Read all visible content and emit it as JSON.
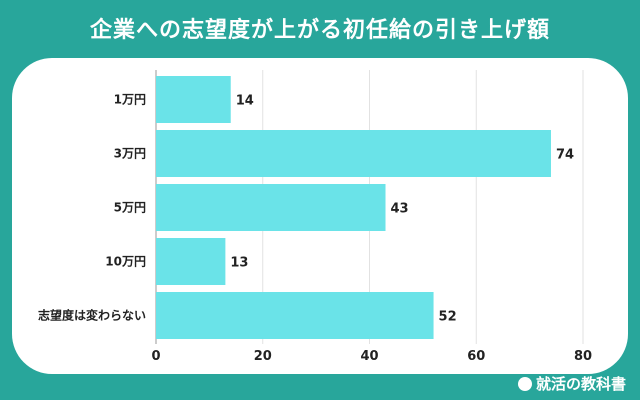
{
  "chart_data": {
    "type": "bar",
    "orientation": "horizontal",
    "title": "企業への志望度が上がる初任給の引き上げ額",
    "categories": [
      "1万円",
      "3万円",
      "5万円",
      "10万円",
      "志望度は変わらない"
    ],
    "values": [
      14,
      74,
      43,
      13,
      52
    ],
    "xlim": [
      0,
      80
    ],
    "xticks": [
      0,
      20,
      40,
      60,
      80
    ],
    "grid": true,
    "bar_color": "#6ae3e8",
    "xlabel": "",
    "ylabel": ""
  },
  "brand": {
    "name": "就活の教科書"
  },
  "colors": {
    "background": "#28a69b"
  }
}
